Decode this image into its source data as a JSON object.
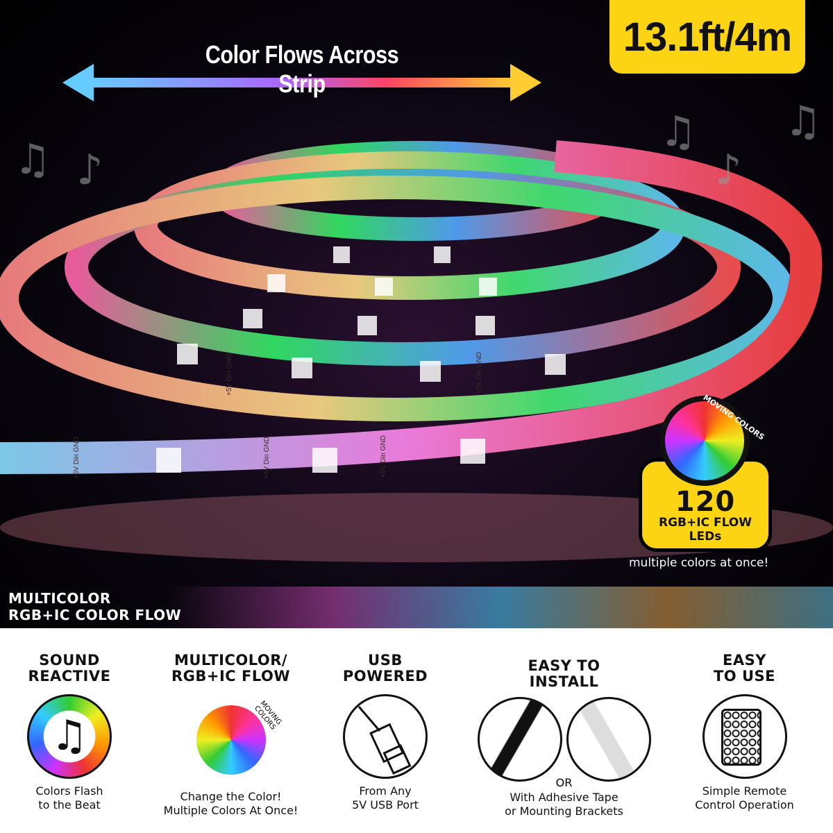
{
  "hero": {
    "flow_title": "Color Flows Across Strip",
    "length_badge": "13.1ft/4m",
    "led_badge": {
      "count": "120",
      "line1": "RGB+IC FLOW",
      "line2": "LEDs",
      "ring_label": "MOVING COLORS"
    },
    "multi_note": "multiple colors at once!",
    "band_label": [
      "MULTICOLOR",
      "RGB+IC COLOR FLOW"
    ],
    "strip_print": "+5V Din GND",
    "badge_color": "#fcd414"
  },
  "features": [
    {
      "title": [
        "SOUND",
        "REACTIVE"
      ],
      "icon": "music-note-icon",
      "caption": [
        "Colors Flash",
        "to the Beat"
      ]
    },
    {
      "title": [
        "MULTICOLOR/",
        "RGB+IC FLOW"
      ],
      "icon": "color-wheel-icon",
      "ring_label": "MOVING COLORS",
      "caption": [
        "Change the Color!",
        "Multiple Colors At Once!"
      ]
    },
    {
      "title": [
        "USB",
        "POWERED"
      ],
      "icon": "usb-plug-icon",
      "caption": [
        "From Any",
        "5V USB Port"
      ]
    },
    {
      "title": [
        "EASY TO",
        "INSTALL"
      ],
      "icon": "mounting-icon",
      "or_label": "OR",
      "caption": [
        "With Adhesive Tape",
        "or Mounting Brackets"
      ]
    },
    {
      "title": [
        "EASY",
        "TO USE"
      ],
      "icon": "remote-icon",
      "caption": [
        "Simple Remote",
        "Control Operation"
      ]
    }
  ]
}
